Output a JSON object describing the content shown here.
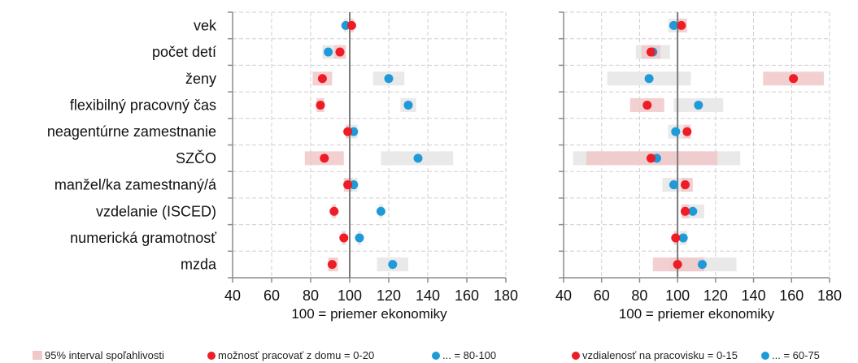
{
  "chart_data": [
    {
      "type": "dot-ci",
      "xlabel": "100 = priemer ekonomiky",
      "xlim": [
        40,
        180
      ],
      "xticks": [
        40,
        60,
        80,
        100,
        120,
        140,
        160,
        180
      ],
      "reference_x": 100,
      "categories": [
        "vek",
        "počet detí",
        "ženy",
        "flexibilný pracovný čas",
        "neagentúrne zamestnanie",
        "SZČO",
        "manžel/ka zamestnaný/á",
        "vzdelanie (ISCED)",
        "numerická gramotnosť",
        "mzda"
      ],
      "series": [
        {
          "name": "možnosť pracovať z domu = 0-20",
          "color": "#ee1c25",
          "values": [
            101,
            95,
            86,
            85,
            99,
            87,
            99,
            92,
            97,
            91
          ],
          "ci": [
            [
              100,
              102
            ],
            [
              92,
              98
            ],
            [
              81,
              91
            ],
            [
              83,
              87
            ],
            [
              98,
              100
            ],
            [
              77,
              97
            ],
            [
              97,
              101
            ],
            [
              91,
              93
            ],
            [
              96,
              98
            ],
            [
              89,
              94
            ]
          ]
        },
        {
          "name": "... = 80-100",
          "color": "#1f9ad8",
          "values": [
            98,
            89,
            120,
            130,
            102,
            135,
            102,
            116,
            105,
            122
          ],
          "ci": [
            [
              97,
              99
            ],
            [
              86,
              92
            ],
            [
              112,
              128
            ],
            [
              126,
              134
            ],
            [
              100,
              104
            ],
            [
              116,
              153
            ],
            [
              100,
              104
            ],
            [
              115,
              117
            ],
            [
              104,
              106
            ],
            [
              114,
              130
            ]
          ]
        }
      ]
    },
    {
      "type": "dot-ci",
      "xlabel": "100 = priemer ekonomiky",
      "xlim": [
        40,
        180
      ],
      "xticks": [
        40,
        60,
        80,
        100,
        120,
        140,
        160,
        180
      ],
      "reference_x": 100,
      "categories": [
        "vek",
        "počet detí",
        "ženy",
        "flexibilný pracovný čas",
        "neagentúrne zamestnanie",
        "SZČO",
        "manžel/ka zamestnaný/á",
        "vzdelanie (ISCED)",
        "numerická gramotnosť",
        "mzda"
      ],
      "series": [
        {
          "name": "vzdialenosť na pracovisku = 0-15",
          "color": "#ee1c25",
          "values": [
            102,
            86,
            161,
            84,
            105,
            86,
            104,
            104,
            99,
            100
          ],
          "ci": [
            [
              100,
              105
            ],
            [
              81,
              91
            ],
            [
              145,
              177
            ],
            [
              75,
              93
            ],
            [
              103,
              107
            ],
            [
              52,
              121
            ],
            [
              102,
              108
            ],
            [
              102,
              106
            ],
            [
              98,
              100
            ],
            [
              87,
              114
            ]
          ]
        },
        {
          "name": "... = 60-75",
          "color": "#1f9ad8",
          "values": [
            98,
            87,
            85,
            111,
            99,
            89,
            98,
            108,
            103,
            113
          ],
          "ci": [
            [
              95,
              102
            ],
            [
              78,
              96
            ],
            [
              63,
              107
            ],
            [
              98,
              124
            ],
            [
              95,
              103
            ],
            [
              45,
              133
            ],
            [
              92,
              104
            ],
            [
              103,
              114
            ],
            [
              101,
              105
            ],
            [
              96,
              131
            ]
          ]
        }
      ]
    }
  ],
  "legend": {
    "ci_label": "95% interval spoľahlivosti",
    "left_items": [
      "možnosť pracovať z domu = 0-20",
      "... = 80-100"
    ],
    "right_items": [
      "vzdialenosť na pracovisku = 0-15",
      "... = 60-75"
    ]
  },
  "colors": {
    "red_dot": "#ee1c25",
    "blue_dot": "#1f9ad8",
    "red_band": "#f0c8c9",
    "grey_band": "#e9e9e9",
    "grid": "#cfcfcf",
    "axis": "#8c8c8c"
  }
}
